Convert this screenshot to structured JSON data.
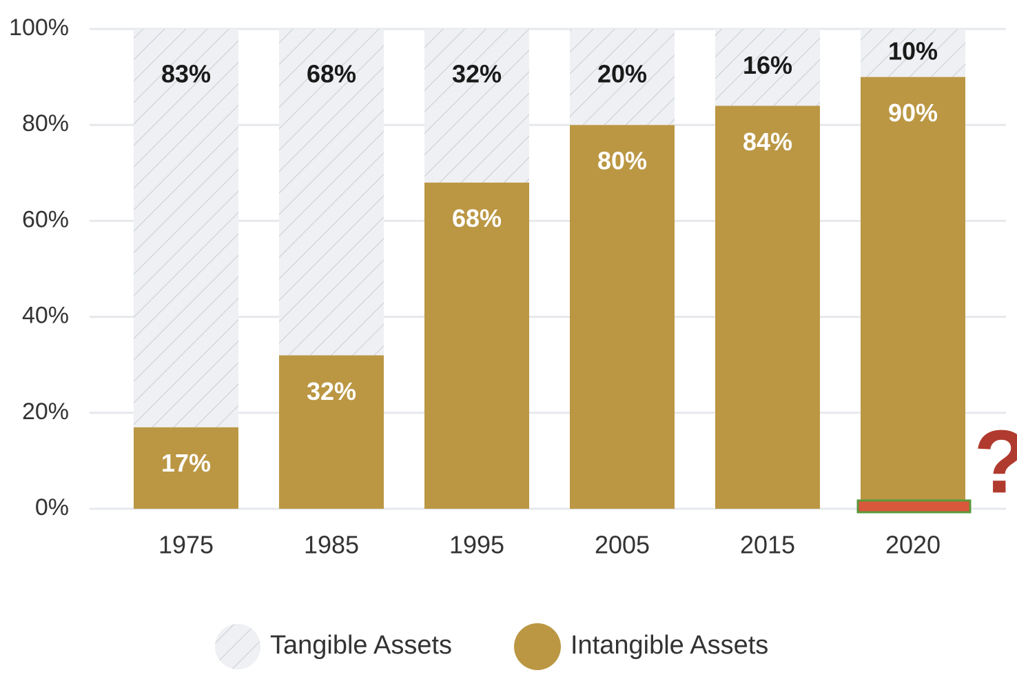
{
  "chart_data": {
    "type": "stacked_bar",
    "categories": [
      "1975",
      "1985",
      "1995",
      "2005",
      "2015",
      "2020"
    ],
    "series": [
      {
        "name": "Tangible Assets",
        "color": "#eef0f3",
        "values": [
          83,
          68,
          32,
          20,
          16,
          10
        ],
        "value_labels": [
          "83%",
          "68%",
          "32%",
          "20%",
          "16%",
          "10%"
        ]
      },
      {
        "name": "Intangible Assets",
        "color": "#bb9744",
        "values": [
          17,
          32,
          68,
          80,
          84,
          90
        ],
        "value_labels": [
          "17%",
          "32%",
          "68%",
          "80%",
          "84%",
          "90%"
        ]
      }
    ],
    "ylim": [
      0,
      100
    ],
    "yticks": [
      {
        "value": 0,
        "label": "0%"
      },
      {
        "value": 20,
        "label": "20%"
      },
      {
        "value": 40,
        "label": "40%"
      },
      {
        "value": 60,
        "label": "60%"
      },
      {
        "value": 80,
        "label": "80%"
      },
      {
        "value": 100,
        "label": "100%"
      }
    ],
    "grid": true,
    "annotation": "?"
  }
}
